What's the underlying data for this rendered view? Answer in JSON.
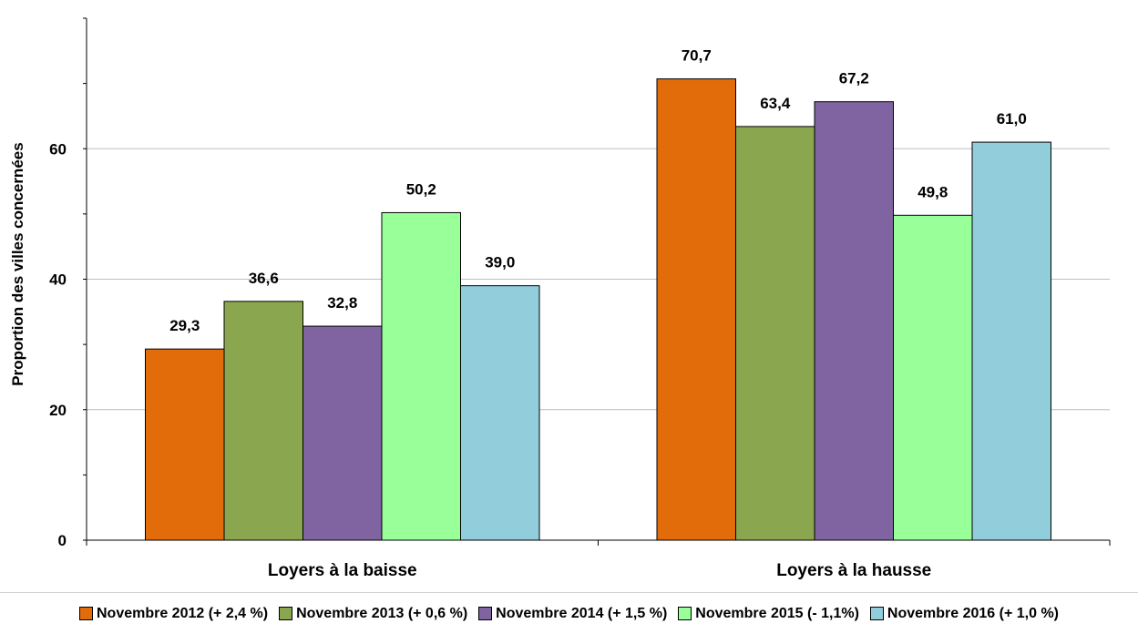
{
  "chart_data": {
    "type": "bar",
    "title": "",
    "xlabel": "",
    "ylabel": "Proportion des villes concernées",
    "ylim": [
      0,
      80
    ],
    "yticks": [
      0,
      20,
      40,
      60
    ],
    "ytick_labels": [
      "0",
      "20",
      "40",
      "60"
    ],
    "grid": "horizontal",
    "legend_position": "bottom",
    "categories": [
      "Loyers à la baisse",
      "Loyers à la hausse"
    ],
    "series": [
      {
        "name": "Novembre 2012 (+ 2,4 %)",
        "color": "#E36C0A",
        "values": [
          29.3,
          70.7
        ],
        "labels": [
          "29,3",
          "70,7"
        ]
      },
      {
        "name": "Novembre 2013 (+ 0,6 %)",
        "color": "#8AA64E",
        "values": [
          36.6,
          63.4
        ],
        "labels": [
          "36,6",
          "63,4"
        ]
      },
      {
        "name": "Novembre 2014 (+ 1,5 %)",
        "color": "#8064A2",
        "values": [
          32.8,
          67.2
        ],
        "labels": [
          "32,8",
          "67,2"
        ]
      },
      {
        "name": "Novembre 2015 (- 1,1%)",
        "color": "#99FF99",
        "values": [
          50.2,
          49.8
        ],
        "labels": [
          "50,2",
          "49,8"
        ]
      },
      {
        "name": "Novembre 2016 (+ 1,0 %)",
        "color": "#92CDDC",
        "values": [
          39.0,
          61.0
        ],
        "labels": [
          "39,0",
          "61,0"
        ]
      }
    ]
  }
}
